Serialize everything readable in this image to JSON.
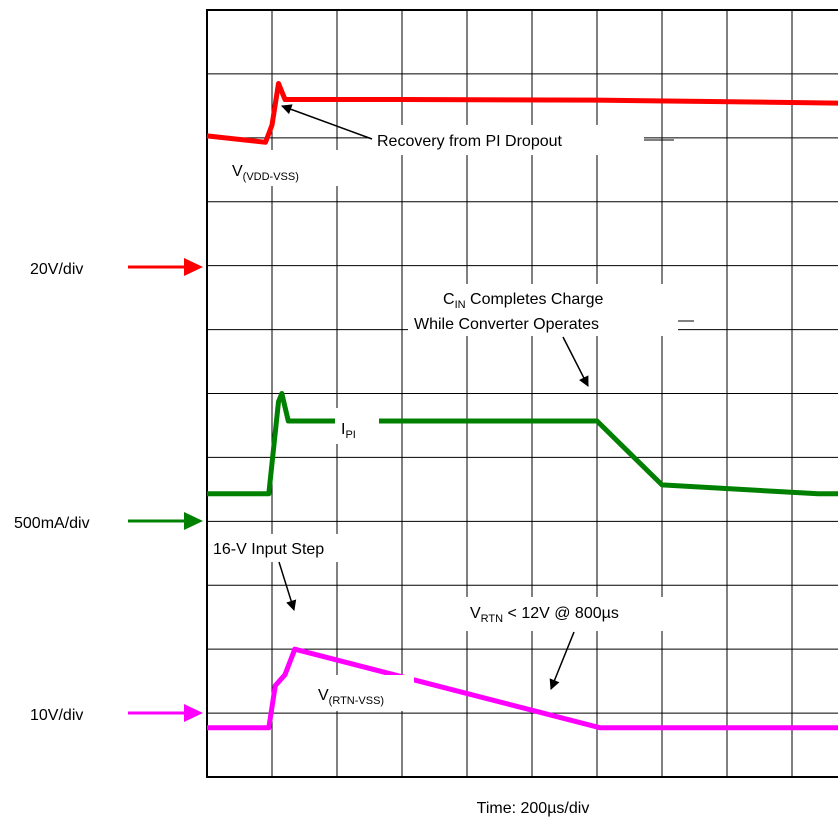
{
  "chart_data": {
    "type": "line",
    "title": "",
    "xlabel": "Time: 200µs/div",
    "ylabel": "",
    "grid": true,
    "xlim": [
      0,
      10
    ],
    "ylim": [
      0,
      12
    ],
    "x_unit": "div",
    "y_unit": "div",
    "scales": [
      {
        "text": "20V/div",
        "color": "#ff0000",
        "y": 7.78
      },
      {
        "text": "500mA/div",
        "color": "#008000",
        "y": 3.77
      },
      {
        "text": "10V/div",
        "color": "#ff00ff",
        "y": 0.77
      }
    ],
    "series": [
      {
        "name": "V(VDD-VSS)",
        "label_main": "V",
        "label_sub": "(VDD-VSS)",
        "color": "#ff0000",
        "x": [
          0,
          0.9,
          1.0,
          1.1,
          1.2,
          3.0,
          6.0,
          10.0
        ],
        "y": [
          10.03,
          9.93,
          10.2,
          10.85,
          10.6,
          10.6,
          10.59,
          10.54
        ]
      },
      {
        "name": "I_PI",
        "label_main": "I",
        "label_sub": "PI",
        "color": "#008000",
        "x": [
          0,
          0.95,
          1.1,
          1.15,
          1.25,
          6.0,
          7.0,
          9.4,
          10.0
        ],
        "y": [
          4.43,
          4.43,
          5.87,
          6.0,
          5.57,
          5.57,
          4.57,
          4.43,
          4.43
        ]
      },
      {
        "name": "V(RTN-VSS)",
        "label_main": "V",
        "label_sub": "(RTN-VSS)",
        "color": "#ff00ff",
        "x": [
          0,
          0.95,
          1.05,
          1.2,
          1.35,
          6.05,
          10.0
        ],
        "y": [
          0.77,
          0.77,
          1.43,
          1.6,
          2.0,
          0.77,
          0.77
        ]
      }
    ],
    "annotations": [
      {
        "text": "Recovery from PI Dropout"
      },
      {
        "lines": [
          {
            "main": "C",
            "sub": "IN",
            "rest": " Completes Charge"
          },
          {
            "main": "While Converter Operates"
          }
        ]
      },
      {
        "text": "16-V Input Step"
      },
      {
        "main": "V",
        "sub": "RTN",
        "rest": " < 12V @ 800µs"
      }
    ]
  }
}
